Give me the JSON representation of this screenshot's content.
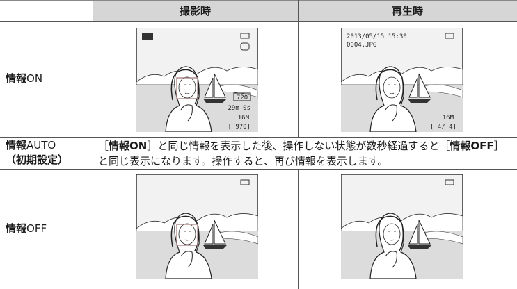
{
  "header": {
    "shooting": "撮影時",
    "playback": "再生時"
  },
  "rows": [
    {
      "label": [
        [
          {
            "text": "情報",
            "bold": true
          },
          {
            "text": "ON",
            "bold": false
          }
        ]
      ]
    },
    {
      "label": [
        [
          {
            "text": "情報",
            "bold": true
          },
          {
            "text": "AUTO",
            "bold": false
          }
        ],
        [
          {
            "text": "（初期設定）",
            "bold": true
          }
        ]
      ],
      "description": [
        {
          "text": "［",
          "bold": false
        },
        {
          "text": "情報ON",
          "bold": true
        },
        {
          "text": "］と同じ情報を表示した後、操作しない状態が数秒経過すると［",
          "bold": false
        },
        {
          "text": "情報OFF",
          "bold": true
        },
        {
          "text": "］と同じ表示になります。操作すると、再び情報を表示します。",
          "bold": false
        }
      ]
    },
    {
      "label": [
        [
          {
            "text": "情報",
            "bold": true
          },
          {
            "text": "OFF",
            "bold": false
          }
        ]
      ]
    }
  ],
  "shooting_screen": {
    "movie_badge": "720",
    "movie_time": "29m 0s",
    "size_badge": "16M",
    "remaining": "[  970]"
  },
  "playback_screen": {
    "datetime": "2013/05/15  15:30",
    "file": "0004.JPG",
    "size_badge": "16M",
    "counter": "[    4/    4]"
  }
}
